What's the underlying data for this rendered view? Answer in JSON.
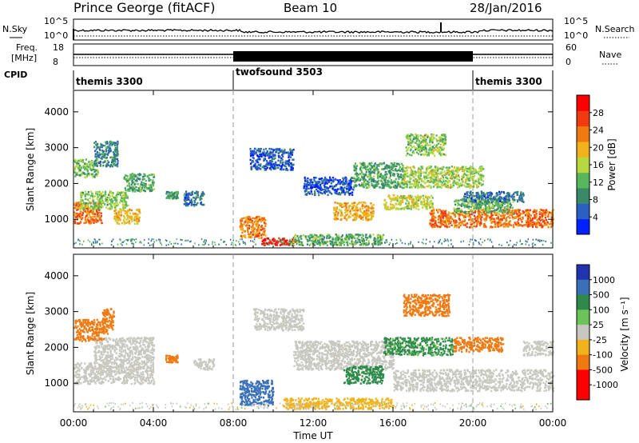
{
  "header": {
    "station": "Prince George (fitACF)",
    "beam": "Beam 10",
    "date": "28/Jan/2016"
  },
  "noise_panel": {
    "left_label": "N.Sky",
    "right_label": "N.Search",
    "left_ticks": [
      "10^5",
      "10^0"
    ],
    "right_ticks": [
      "10^5",
      "10^0"
    ]
  },
  "freq_panel": {
    "left_label_1": "Freq.",
    "left_label_2": "[MHz]",
    "right_label": "Nave",
    "left_ticks": [
      "18",
      "8"
    ],
    "right_ticks": [
      "60",
      "0"
    ]
  },
  "cpid_panel": {
    "label": "CPID",
    "segments": [
      {
        "name": "themis 3300",
        "start_hour": 0,
        "end_hour": 8
      },
      {
        "name": "twofsound 3503",
        "start_hour": 8,
        "end_hour": 20
      },
      {
        "name": "themis 3300",
        "start_hour": 20,
        "end_hour": 24
      }
    ]
  },
  "colors": {
    "power_scale": [
      "#0020ff",
      "#2a5fc4",
      "#3a8a6a",
      "#58b65c",
      "#b8d842",
      "#f2b21b",
      "#f07a10",
      "#f03a10",
      "#ff0000"
    ],
    "velocity_scale": [
      "#2233b0",
      "#3a70b8",
      "#2f8a4a",
      "#6cc35a",
      "#c8c8c0",
      "#f2b21b",
      "#f07a10",
      "#ff0000"
    ]
  },
  "chart_data": [
    {
      "type": "heatmap",
      "name": "power",
      "xlabel": "",
      "ylabel": "Slant Range [km]",
      "xlim": [
        0,
        24
      ],
      "ylim": [
        200,
        4600
      ],
      "yticks": [
        "1000",
        "2000",
        "3000",
        "4000"
      ],
      "colorbar": {
        "label": "Power [dB]",
        "ticks": [
          "4",
          "8",
          "12",
          "16",
          "20",
          "24",
          "28"
        ],
        "range": [
          0,
          32
        ]
      },
      "regions": [
        {
          "t0": 0.0,
          "t1": 1.4,
          "r0": 900,
          "r1": 1500,
          "v": 24
        },
        {
          "t0": 0.3,
          "t1": 2.7,
          "r0": 1300,
          "r1": 1800,
          "v": 14
        },
        {
          "t0": 0.0,
          "t1": 1.2,
          "r0": 2200,
          "r1": 2700,
          "v": 13
        },
        {
          "t0": 1.0,
          "t1": 2.2,
          "r0": 2500,
          "r1": 3200,
          "v": 8
        },
        {
          "t0": 2.0,
          "t1": 3.3,
          "r0": 900,
          "r1": 1300,
          "v": 19
        },
        {
          "t0": 2.5,
          "t1": 4.0,
          "r0": 1800,
          "r1": 2300,
          "v": 11
        },
        {
          "t0": 4.6,
          "t1": 5.2,
          "r0": 1600,
          "r1": 1800,
          "v": 10
        },
        {
          "t0": 5.5,
          "t1": 6.5,
          "r0": 1400,
          "r1": 1800,
          "v": 7
        },
        {
          "t0": 8.3,
          "t1": 9.6,
          "r0": 500,
          "r1": 1100,
          "v": 23
        },
        {
          "t0": 9.4,
          "t1": 11.2,
          "r0": 300,
          "r1": 500,
          "v": 29
        },
        {
          "t0": 10.8,
          "t1": 15.5,
          "r0": 300,
          "r1": 600,
          "v": 12
        },
        {
          "t0": 8.8,
          "t1": 11.0,
          "r0": 2400,
          "r1": 3000,
          "v": 5
        },
        {
          "t0": 11.5,
          "t1": 14.0,
          "r0": 1700,
          "r1": 2200,
          "v": 5
        },
        {
          "t0": 13.0,
          "t1": 15.0,
          "r0": 1000,
          "r1": 1500,
          "v": 20
        },
        {
          "t0": 14.0,
          "t1": 16.5,
          "r0": 1900,
          "r1": 2600,
          "v": 11
        },
        {
          "t0": 15.5,
          "t1": 18.0,
          "r0": 1300,
          "r1": 1700,
          "v": 17
        },
        {
          "t0": 16.5,
          "t1": 20.5,
          "r0": 1900,
          "r1": 2500,
          "v": 15
        },
        {
          "t0": 16.6,
          "t1": 18.6,
          "r0": 2800,
          "r1": 3400,
          "v": 14
        },
        {
          "t0": 17.8,
          "t1": 24.0,
          "r0": 800,
          "r1": 1300,
          "v": 24
        },
        {
          "t0": 19.0,
          "t1": 22.0,
          "r0": 1200,
          "r1": 1600,
          "v": 12
        },
        {
          "t0": 19.5,
          "t1": 22.5,
          "r0": 1500,
          "r1": 1800,
          "v": 7
        }
      ]
    },
    {
      "type": "heatmap",
      "name": "velocity",
      "xlabel": "Time UT",
      "ylabel": "Slant Range [km]",
      "xlim": [
        0,
        24
      ],
      "ylim": [
        200,
        4600
      ],
      "yticks": [
        "1000",
        "2000",
        "3000",
        "4000"
      ],
      "xticks": [
        "00:00",
        "04:00",
        "08:00",
        "12:00",
        "16:00",
        "20:00",
        "00:00"
      ],
      "colorbar": {
        "label": "Velocity [m s⁻¹]",
        "ticks": [
          "1000",
          "500",
          "100",
          "25",
          "-25",
          "-100",
          "-500",
          "-1000"
        ]
      },
      "regions": [
        {
          "t0": 0.0,
          "t1": 4.0,
          "r0": 1000,
          "r1": 1600,
          "v": 0
        },
        {
          "t0": 1.0,
          "t1": 4.0,
          "r0": 1600,
          "r1": 2300,
          "v": 0
        },
        {
          "t0": 0.0,
          "t1": 1.5,
          "r0": 2200,
          "r1": 2800,
          "v": -300
        },
        {
          "t0": 1.4,
          "t1": 2.0,
          "r0": 2400,
          "r1": 3100,
          "v": -150
        },
        {
          "t0": 4.6,
          "t1": 5.2,
          "r0": 1600,
          "r1": 1800,
          "v": -200
        },
        {
          "t0": 6.0,
          "t1": 7.0,
          "r0": 1400,
          "r1": 1700,
          "v": 0
        },
        {
          "t0": 8.3,
          "t1": 10.0,
          "r0": 400,
          "r1": 1100,
          "v": 300
        },
        {
          "t0": 10.5,
          "t1": 16.0,
          "r0": 300,
          "r1": 600,
          "v": -60
        },
        {
          "t0": 9.0,
          "t1": 11.5,
          "r0": 2500,
          "r1": 3100,
          "v": 0
        },
        {
          "t0": 11.0,
          "t1": 16.0,
          "r0": 1400,
          "r1": 2200,
          "v": 0
        },
        {
          "t0": 13.5,
          "t1": 15.5,
          "r0": 1000,
          "r1": 1500,
          "v": 80
        },
        {
          "t0": 15.5,
          "t1": 19.0,
          "r0": 1800,
          "r1": 2300,
          "v": 60
        },
        {
          "t0": 16.5,
          "t1": 18.8,
          "r0": 2900,
          "r1": 3500,
          "v": -250
        },
        {
          "t0": 16.0,
          "t1": 24.0,
          "r0": 800,
          "r1": 1400,
          "v": 0
        },
        {
          "t0": 19.0,
          "t1": 21.5,
          "r0": 1900,
          "r1": 2300,
          "v": -300
        },
        {
          "t0": 22.5,
          "t1": 24.0,
          "r0": 1800,
          "r1": 2200,
          "v": 0
        }
      ]
    }
  ]
}
